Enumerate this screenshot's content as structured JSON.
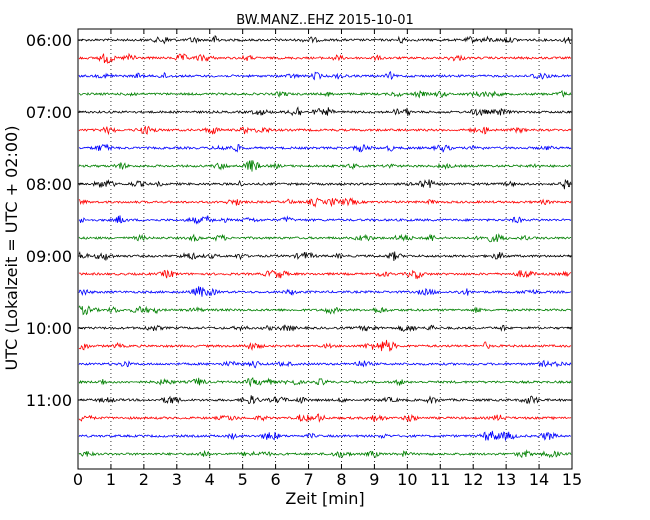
{
  "chart_data": {
    "type": "line",
    "title": "BW.MANZ..EHZ 2015-10-01",
    "xlabel": "Zeit  [min]",
    "ylabel": "UTC (Lokalzeit = UTC + 02:00)",
    "xlim": [
      0,
      15
    ],
    "x_ticks": [
      "0",
      "1",
      "2",
      "3",
      "4",
      "5",
      "6",
      "7",
      "8",
      "9",
      "10",
      "11",
      "12",
      "13",
      "14",
      "15"
    ],
    "y_tick_labels": [
      "06:00",
      "07:00",
      "08:00",
      "09:00",
      "10:00",
      "11:00"
    ],
    "trace_interval_minutes": 15,
    "grid": "vertical dotted",
    "colors": [
      "#000000",
      "#ff0000",
      "#0000ff",
      "#008000"
    ],
    "traces": [
      {
        "start": "06:00",
        "color": "#000000"
      },
      {
        "start": "06:15",
        "color": "#ff0000"
      },
      {
        "start": "06:30",
        "color": "#0000ff"
      },
      {
        "start": "06:45",
        "color": "#008000"
      },
      {
        "start": "07:00",
        "color": "#000000"
      },
      {
        "start": "07:15",
        "color": "#ff0000"
      },
      {
        "start": "07:30",
        "color": "#0000ff"
      },
      {
        "start": "07:45",
        "color": "#008000"
      },
      {
        "start": "08:00",
        "color": "#000000"
      },
      {
        "start": "08:15",
        "color": "#ff0000"
      },
      {
        "start": "08:30",
        "color": "#0000ff"
      },
      {
        "start": "08:45",
        "color": "#008000"
      },
      {
        "start": "09:00",
        "color": "#000000"
      },
      {
        "start": "09:15",
        "color": "#ff0000"
      },
      {
        "start": "09:30",
        "color": "#0000ff"
      },
      {
        "start": "09:45",
        "color": "#008000"
      },
      {
        "start": "10:00",
        "color": "#000000"
      },
      {
        "start": "10:15",
        "color": "#ff0000"
      },
      {
        "start": "10:30",
        "color": "#0000ff"
      },
      {
        "start": "10:45",
        "color": "#008000"
      },
      {
        "start": "11:00",
        "color": "#000000"
      },
      {
        "start": "11:15",
        "color": "#ff0000"
      },
      {
        "start": "11:30",
        "color": "#0000ff"
      },
      {
        "start": "11:45",
        "color": "#008000"
      }
    ]
  }
}
